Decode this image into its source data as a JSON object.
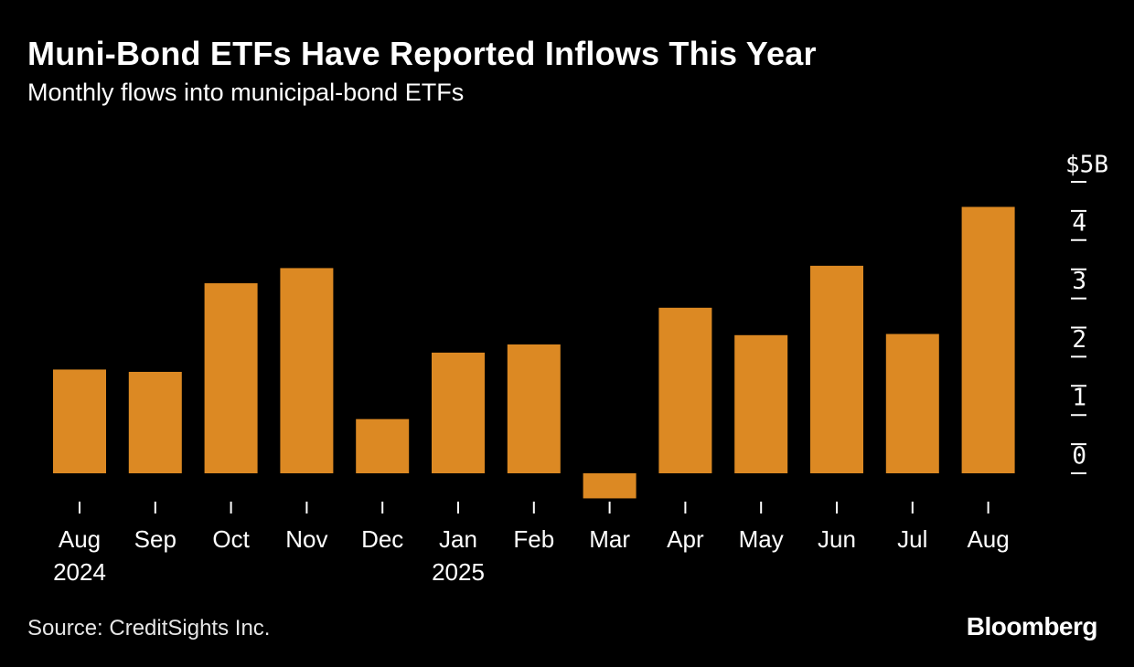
{
  "header": {
    "title": "Muni-Bond ETFs Have Reported Inflows This Year",
    "subtitle": "Monthly flows into municipal-bond ETFs"
  },
  "footer": {
    "source": "Source: CreditSights Inc.",
    "brand": "Bloomberg"
  },
  "colors": {
    "background": "#000000",
    "bar": "#dc8923",
    "text": "#ffffff",
    "tick": "#ffffff"
  },
  "chart_data": {
    "type": "bar",
    "categories": [
      "Aug",
      "Sep",
      "Oct",
      "Nov",
      "Dec",
      "Jan",
      "Feb",
      "Mar",
      "Apr",
      "May",
      "Jun",
      "Jul",
      "Aug"
    ],
    "category_sublabels": [
      "2024",
      "",
      "",
      "",
      "",
      "2025",
      "",
      "",
      "",
      "",
      "",
      "",
      ""
    ],
    "values": [
      1.78,
      1.74,
      3.26,
      3.52,
      0.93,
      2.07,
      2.21,
      -0.43,
      2.84,
      2.37,
      3.56,
      2.39,
      4.57
    ],
    "title": "Muni-Bond ETFs Have Reported Inflows This Year",
    "subtitle": "Monthly flows into municipal-bond ETFs",
    "ylim": [
      -0.6,
      5
    ],
    "yticks": [
      0,
      1,
      2,
      3,
      4,
      5
    ],
    "ytick_labels": [
      "0",
      "1",
      "2",
      "3",
      "4",
      "$5B"
    ],
    "y_axis_position": "right",
    "grid": false,
    "legend": "none"
  }
}
